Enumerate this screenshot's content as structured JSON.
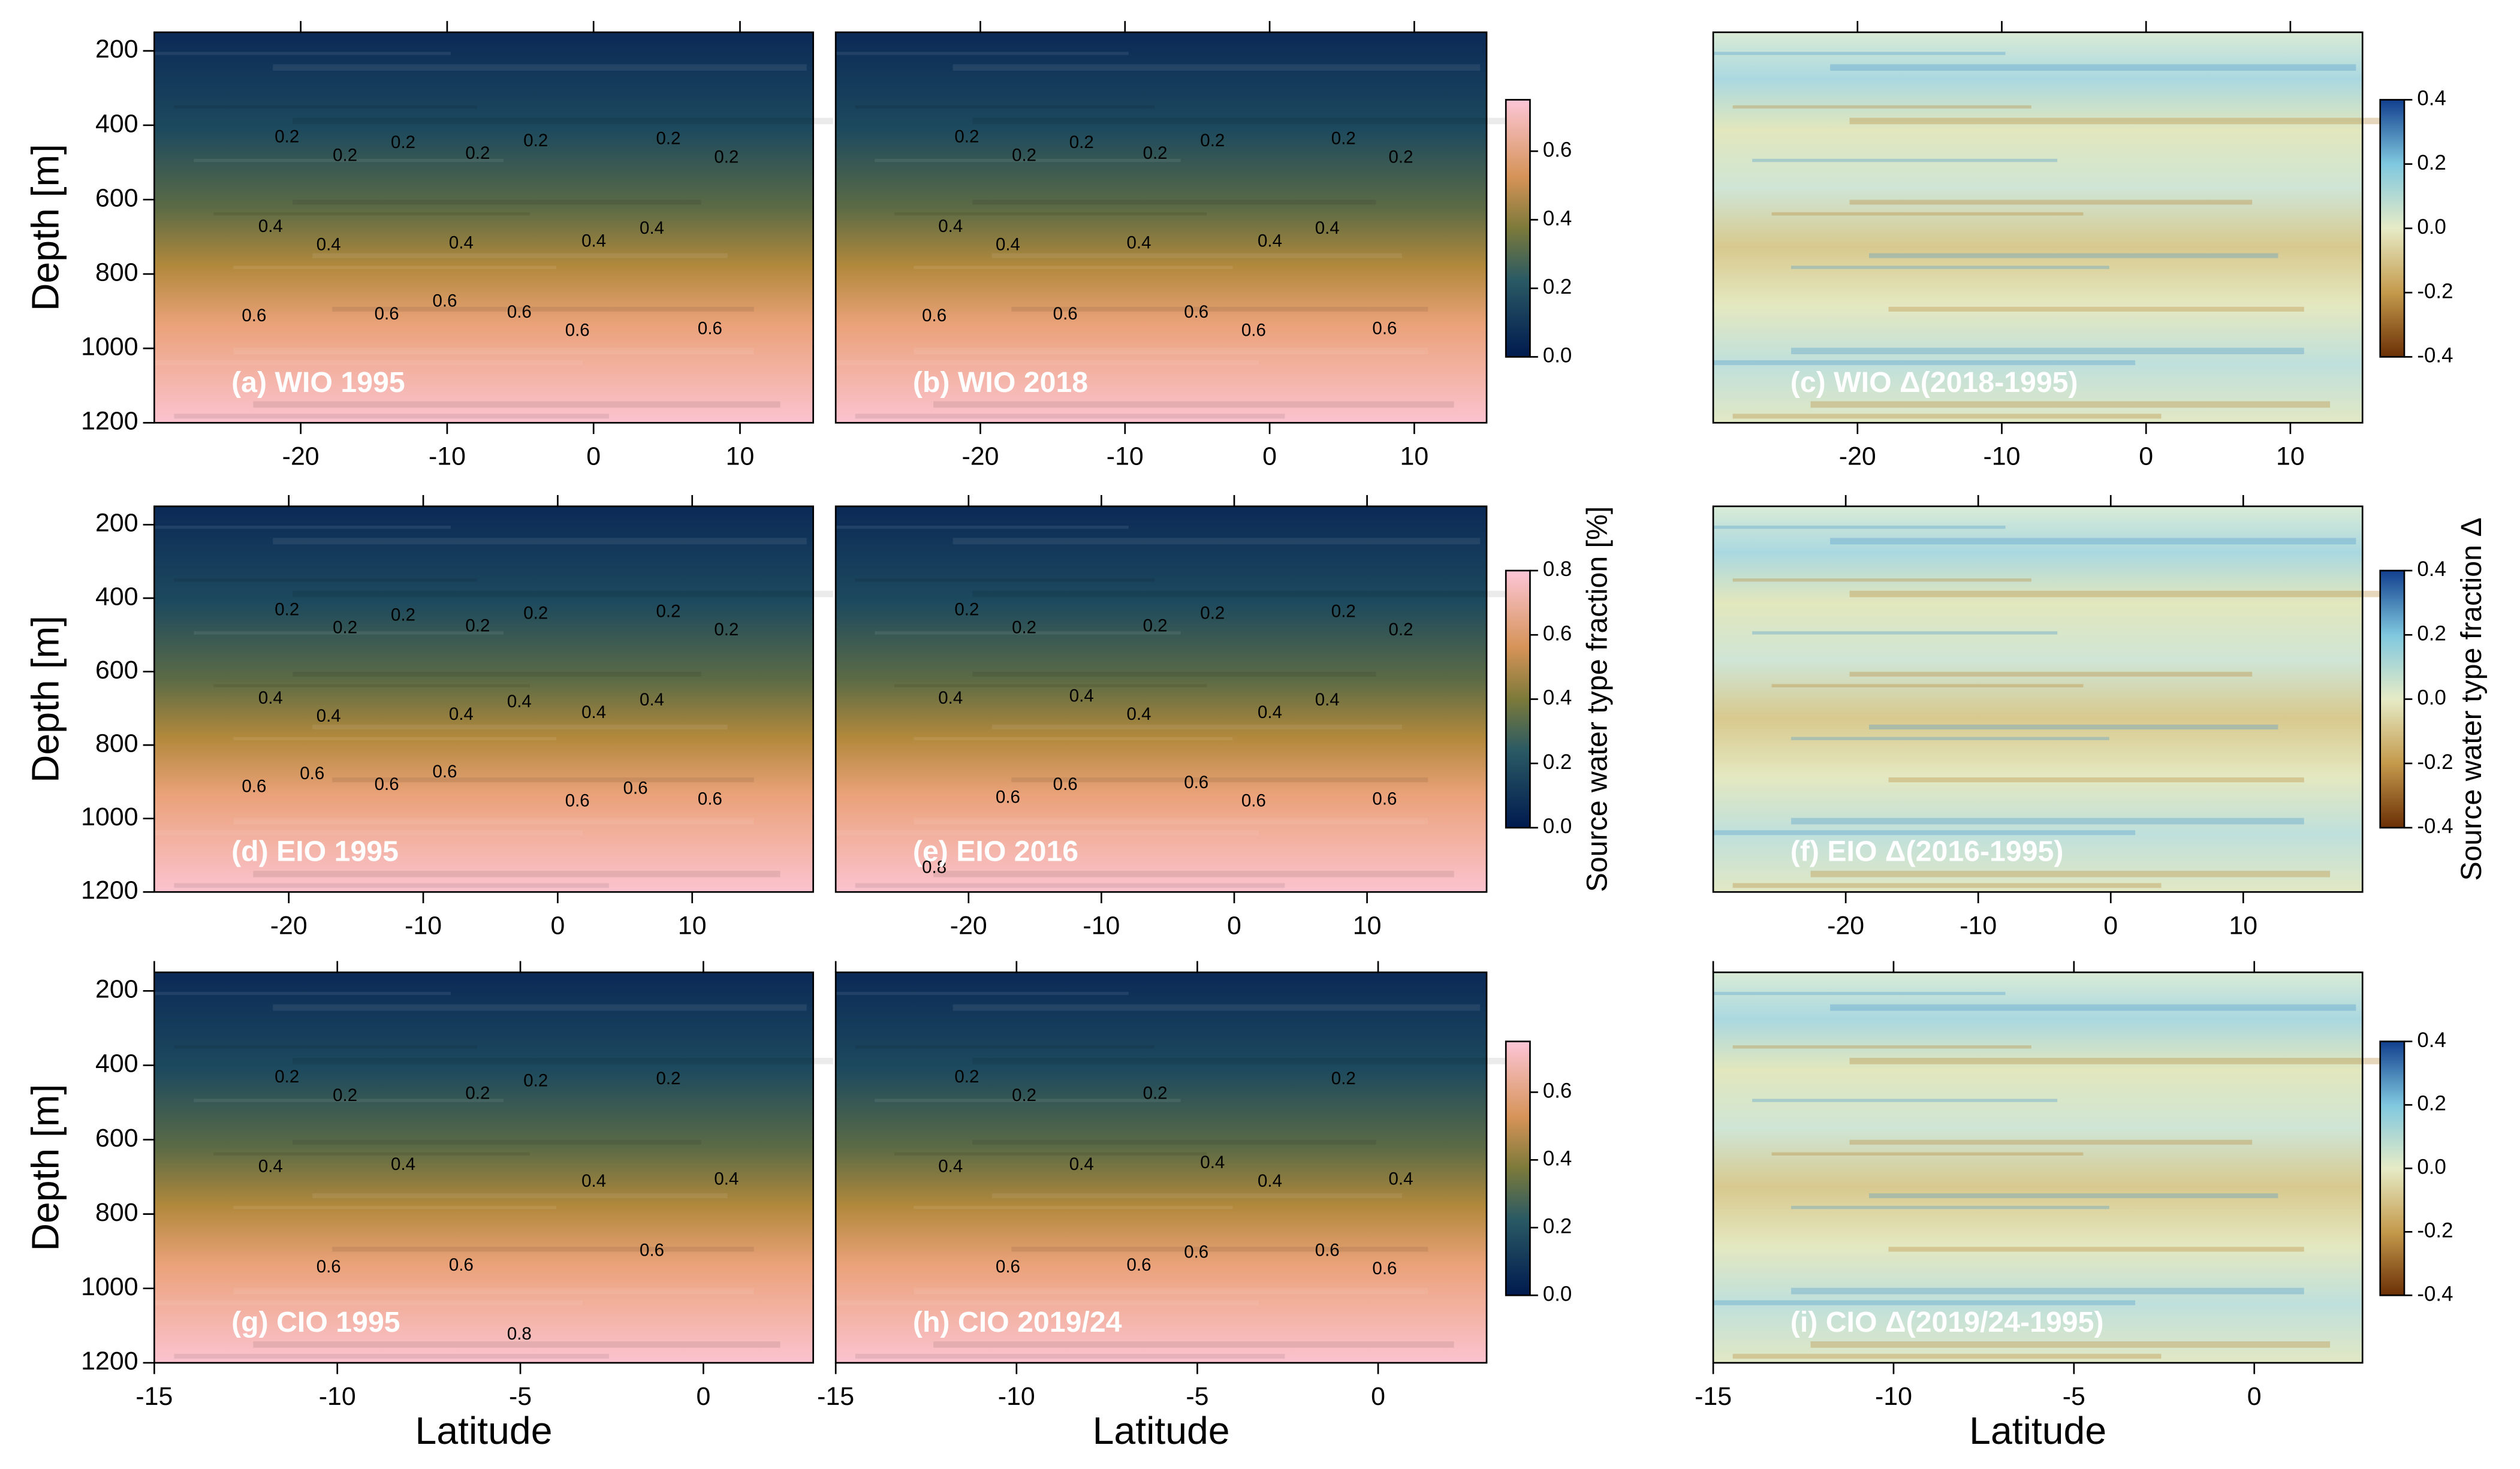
{
  "chart_data": [
    {
      "type": "heatmap",
      "title": "(a) WIO 1995",
      "colormap": "sequential",
      "xlim": [
        -30,
        15
      ],
      "xticks": [
        -20,
        -10,
        0,
        10
      ],
      "ylim": [
        150,
        1200
      ],
      "y_inverted": true,
      "yticks": [
        200,
        400,
        600,
        800,
        1000,
        1200
      ],
      "y_label": "Depth [m]",
      "contours": [
        0.2,
        0.2,
        0.2,
        0.2,
        0.2,
        0.2,
        0.2,
        0.4,
        0.4,
        0.4,
        0.4,
        0.4,
        0.6,
        0.6,
        0.6,
        0.6,
        0.6,
        0.6
      ],
      "colorbar": {
        "lim": [
          0,
          0.75
        ],
        "ticks": [
          {
            "value": 0,
            "label": "0.0"
          },
          0.2,
          0.4,
          0.6
        ]
      }
    },
    {
      "type": "heatmap",
      "title": "(b) WIO 2018",
      "colormap": "sequential",
      "xlim": [
        -30,
        15
      ],
      "xticks": [
        -20,
        -10,
        0,
        10
      ],
      "ylim": [
        150,
        1200
      ],
      "y_inverted": true,
      "contours": [
        0.2,
        0.2,
        0.2,
        0.2,
        0.2,
        0.2,
        0.2,
        0.4,
        0.4,
        0.4,
        0.4,
        0.4,
        0.6,
        0.6,
        0.6,
        0.6,
        0.6
      ]
    },
    {
      "type": "heatmap",
      "title": "(c) WIO Δ(2018-1995)",
      "colormap": "diverging",
      "xlim": [
        -30,
        15
      ],
      "xticks": [
        -20,
        -10,
        0,
        10
      ],
      "ylim": [
        150,
        1200
      ],
      "y_inverted": true,
      "colorbar": {
        "lim": [
          -0.4,
          0.4
        ],
        "ticks": [
          -0.4,
          -0.2,
          {
            "value": 0,
            "label": "0.0"
          },
          0.2,
          0.4
        ]
      }
    },
    {
      "type": "heatmap",
      "title": "(d) EIO 1995",
      "colormap": "sequential",
      "xlim": [
        -30,
        19
      ],
      "xticks": [
        -20,
        -10,
        0,
        10
      ],
      "ylim": [
        150,
        1200
      ],
      "y_inverted": true,
      "yticks": [
        200,
        400,
        600,
        800,
        1000,
        1200
      ],
      "y_label": "Depth [m]",
      "contours": [
        0.2,
        0.2,
        0.2,
        0.2,
        0.2,
        0.2,
        0.2,
        0.4,
        0.4,
        0.4,
        0.4,
        0.4,
        0.4,
        0.6,
        0.6,
        0.6,
        0.6,
        0.6,
        0.6,
        0.6
      ],
      "colorbar": {
        "lim": [
          0,
          0.8
        ],
        "ticks": [
          {
            "value": 0,
            "label": "0.0"
          },
          0.2,
          0.4,
          0.6,
          0.8
        ],
        "label": "Source water type fraction [%]"
      }
    },
    {
      "type": "heatmap",
      "title": "(e) EIO 2016",
      "colormap": "sequential",
      "xlim": [
        -30,
        19
      ],
      "xticks": [
        -20,
        -10,
        0,
        10
      ],
      "ylim": [
        150,
        1200
      ],
      "y_inverted": true,
      "contours": [
        0.2,
        0.2,
        0.2,
        0.2,
        0.2,
        0.2,
        0.4,
        0.4,
        0.4,
        0.4,
        0.4,
        0.6,
        0.6,
        0.6,
        0.6,
        0.6,
        0.8
      ]
    },
    {
      "type": "heatmap",
      "title": "(f) EIO Δ(2016-1995)",
      "colormap": "diverging",
      "xlim": [
        -30,
        19
      ],
      "xticks": [
        -20,
        -10,
        0,
        10
      ],
      "ylim": [
        150,
        1200
      ],
      "y_inverted": true,
      "colorbar": {
        "lim": [
          -0.4,
          0.4
        ],
        "ticks": [
          -0.4,
          -0.2,
          {
            "value": 0,
            "label": "0.0"
          },
          0.2,
          0.4
        ],
        "label": "Source water type fraction Δ"
      }
    },
    {
      "type": "heatmap",
      "title": "(g) CIO 1995",
      "colormap": "sequential",
      "xlim": [
        -15,
        3
      ],
      "xticks": [
        -15,
        -10,
        -5,
        0
      ],
      "ylim": [
        150,
        1200
      ],
      "y_inverted": true,
      "yticks": [
        200,
        400,
        600,
        800,
        1000,
        1200
      ],
      "y_label": "Depth [m]",
      "x_label": "Latitude",
      "contours": [
        0.2,
        0.2,
        0.2,
        0.2,
        0.2,
        0.4,
        0.4,
        0.4,
        0.4,
        0.6,
        0.6,
        0.6,
        0.8
      ],
      "colorbar": {
        "lim": [
          0,
          0.75
        ],
        "ticks": [
          {
            "value": 0,
            "label": "0.0"
          },
          0.2,
          0.4,
          0.6
        ]
      }
    },
    {
      "type": "heatmap",
      "title": "(h) CIO 2019/24",
      "colormap": "sequential",
      "xlim": [
        -15,
        3
      ],
      "xticks": [
        -15,
        -10,
        -5,
        0
      ],
      "ylim": [
        150,
        1200
      ],
      "y_inverted": true,
      "x_label": "Latitude",
      "contours": [
        0.2,
        0.2,
        0.2,
        0.2,
        0.4,
        0.4,
        0.4,
        0.4,
        0.4,
        0.6,
        0.6,
        0.6,
        0.6,
        0.6
      ]
    },
    {
      "type": "heatmap",
      "title": "(i) CIO Δ(2019/24-1995)",
      "colormap": "diverging",
      "xlim": [
        -15,
        3
      ],
      "xticks": [
        -15,
        -10,
        -5,
        0
      ],
      "ylim": [
        150,
        1200
      ],
      "y_inverted": true,
      "x_label": "Latitude",
      "colorbar": {
        "lim": [
          -0.4,
          0.4
        ],
        "ticks": [
          -0.4,
          -0.2,
          {
            "value": 0,
            "label": "0.0"
          },
          0.2,
          0.4
        ]
      }
    }
  ]
}
